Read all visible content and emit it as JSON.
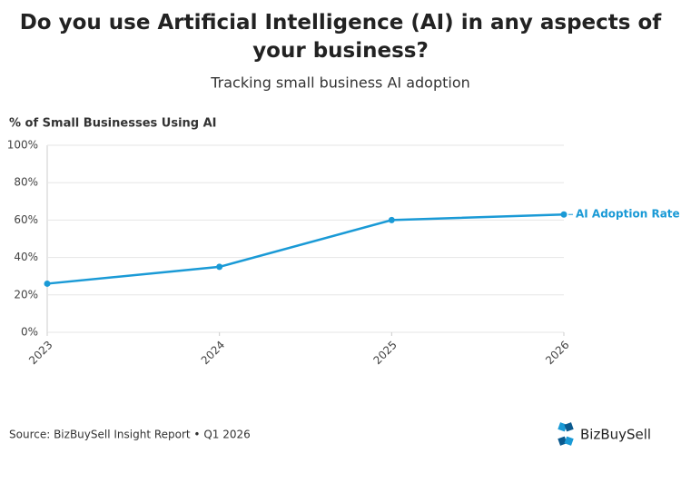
{
  "chart_data": {
    "type": "line",
    "title": "Do you use Artificial Intelligence (AI) in any aspects of your business?",
    "subtitle": "Tracking small business AI adoption",
    "y_label": "% of Small Businesses Using AI",
    "x": [
      2023,
      2024,
      2025,
      2026
    ],
    "xlim": [
      2023,
      2026
    ],
    "xticks": [
      2023,
      2024,
      2025,
      2026
    ],
    "series": [
      {
        "name": "AI Adoption Rate",
        "color": "#1a9ad6",
        "values": [
          26,
          35,
          60,
          63
        ]
      }
    ],
    "ylim": [
      0,
      100
    ],
    "yticks": [
      {
        "value": 0,
        "label": "0%"
      },
      {
        "value": 20,
        "label": "20%"
      },
      {
        "value": 40,
        "label": "40%"
      },
      {
        "value": 60,
        "label": "60%"
      },
      {
        "value": 80,
        "label": "80%"
      },
      {
        "value": 100,
        "label": "100%"
      }
    ],
    "grid": true,
    "source": "Source: BizBuySell Insight Report • Q1 2026",
    "logo": "BizBuySell"
  }
}
